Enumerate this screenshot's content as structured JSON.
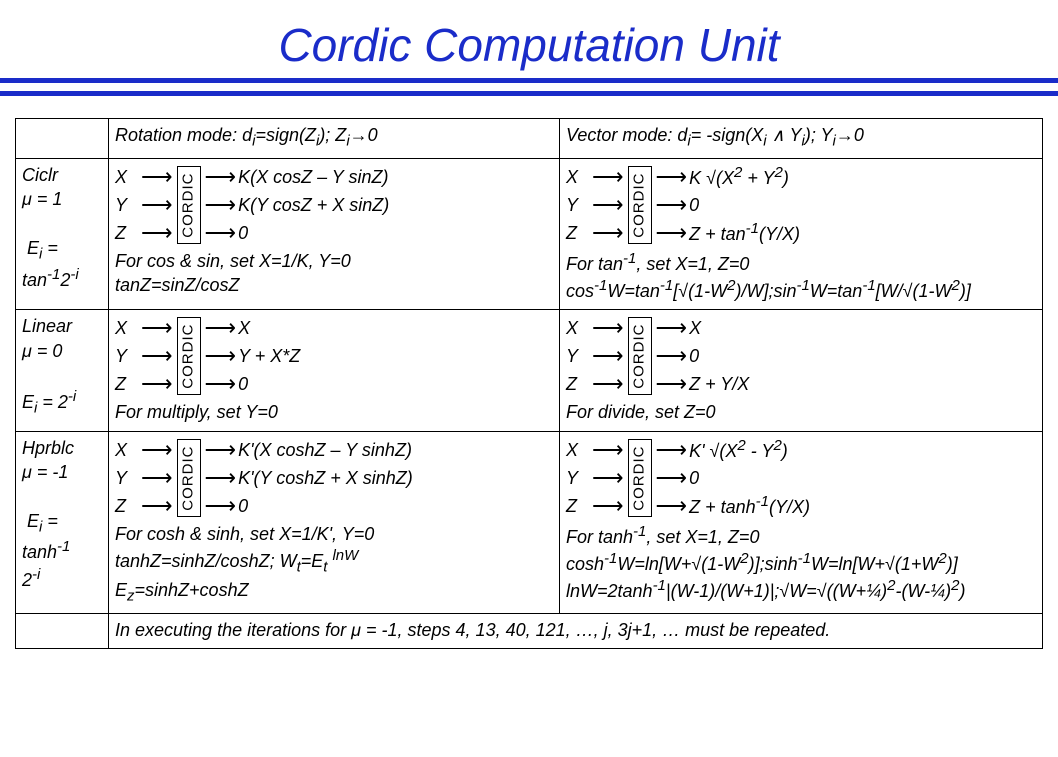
{
  "title": "Cordic Computation Unit",
  "headers": {
    "rotation": "Rotation mode: d<sub>i</sub>=sign(Z<sub>i</sub>); Z<sub>i</sub>→0",
    "vector": "Vector mode: d<sub>i</sub>= -sign(X<sub>i</sub> ∧ Y<sub>i</sub>); Y<sub>i</sub>→0"
  },
  "cordic_label": "CORDIC",
  "rows": [
    {
      "label": "Ciclr<br>μ = 1<br><br>&nbsp;E<sub>i</sub> =<br>tan<sup>-1</sup>2<sup>-i</sup>",
      "rot_out": [
        "K(X cosZ – Y sinZ)",
        "K(Y cosZ + X sinZ)",
        "0"
      ],
      "rot_note": "For cos &amp; sin, set X=1/K, Y=0<br>tanZ=sinZ/cosZ",
      "vec_out": [
        "K √(X<sup>2</sup> + Y<sup>2</sup>)",
        "0",
        "Z + tan<sup>-1</sup>(Y/X)"
      ],
      "vec_note": "For tan<sup>-1</sup>, set X=1, Z=0<br>cos<sup>-1</sup>W=tan<sup>-1</sup>[√(1-W<sup>2</sup>)/W];sin<sup>-1</sup>W=tan<sup>-1</sup>[W/√(1-W<sup>2</sup>)]"
    },
    {
      "label": "Linear<br>μ = 0<br><br>E<sub>i</sub> = 2<sup>-i</sup>",
      "rot_out": [
        "X",
        "Y + X*Z",
        "0"
      ],
      "rot_note": "For multiply, set Y=0",
      "vec_out": [
        "X",
        "0",
        "Z + Y/X"
      ],
      "vec_note": "For divide, set Z=0"
    },
    {
      "label": "Hprblc<br>μ = -1<br><br>&nbsp;E<sub>i</sub> =<br>tanh<sup>-1</sup><br>2<sup>-i</sup>",
      "rot_out": [
        "K'(X coshZ – Y sinhZ)",
        "K'(Y coshZ + X sinhZ)",
        "0"
      ],
      "rot_note": "For cosh &amp; sinh, set X=1/K', Y=0<br>tanhZ=sinhZ/coshZ; W<sub>t</sub>=E<sub>t</sub> <sup>lnW</sup><br>E<sub>z</sub>=sinhZ+coshZ",
      "vec_out": [
        "K' √(X<sup>2</sup> - Y<sup>2</sup>)",
        "0",
        "Z + tanh<sup>-1</sup>(Y/X)"
      ],
      "vec_note": "For tanh<sup>-1</sup>, set X=1, Z=0<br>cosh<sup>-1</sup>W=ln[W+√(1-W<sup>2</sup>)];sinh<sup>-1</sup>W=ln[W+√(1+W<sup>2</sup>)]<br>lnW=2tanh<sup>-1</sup>|(W-1)/(W+1)|;√W=√((W+¼)<sup>2</sup>-(W-¼)<sup>2</sup>)"
    }
  ],
  "inputs": [
    "X",
    "Y",
    "Z"
  ],
  "footer": "In executing the iterations for μ = -1, steps 4, 13, 40, 121, …, j, 3j+1, … must be repeated.",
  "colors": {
    "title": "#1a2cc9",
    "line": "#1a2cc9",
    "border": "#000000",
    "bg": "#ffffff"
  }
}
